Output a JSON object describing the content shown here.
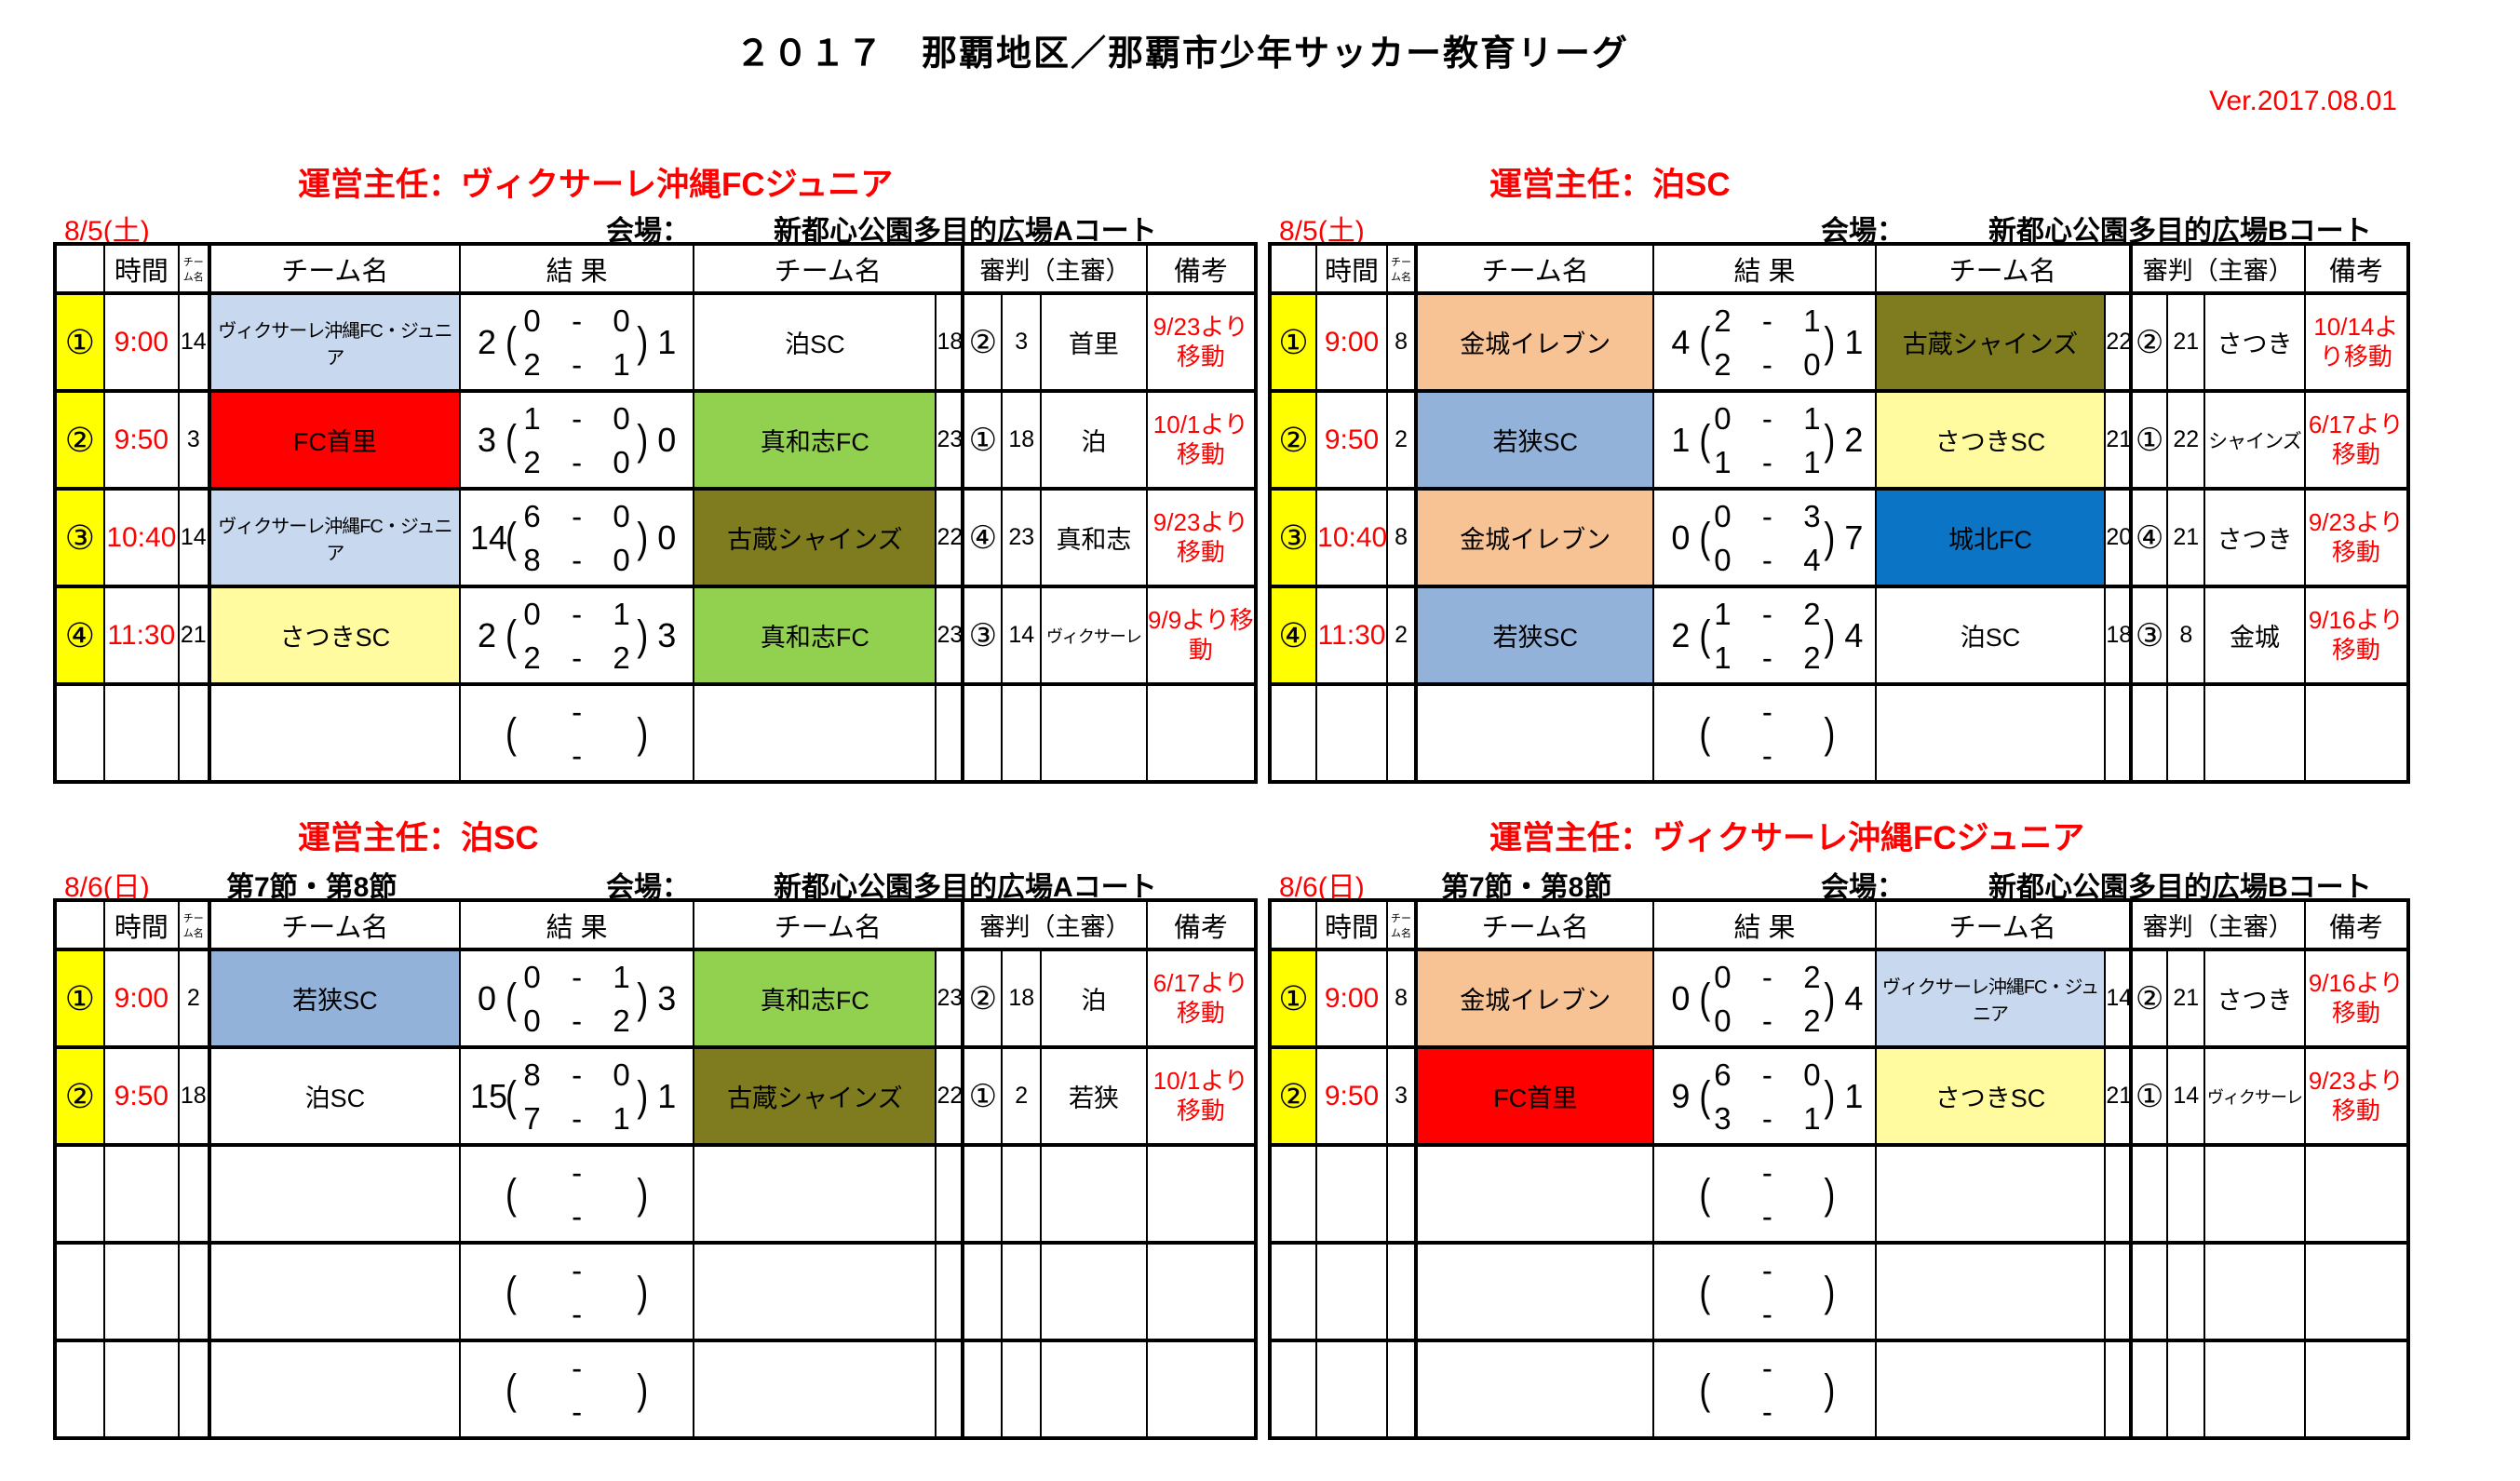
{
  "title": "２０１７　那覇地区／那覇市少年サッカー教育リーグ",
  "version": "Ver.2017.08.01",
  "venue_label": "会場：",
  "table_headers": {
    "corner": "",
    "time": "時間",
    "team_no_small": "チーム名",
    "home_team": "チーム名",
    "result": "結  果",
    "away_team": "チーム名",
    "referee": "審判（主審）",
    "note": "備考"
  },
  "colors": {
    "accent_red": "#FF0000",
    "row_marker_yellow": "#FFFF00",
    "team_vikusare_lightblue": "#C8D8EF",
    "team_shuri_red": "#FF0000",
    "team_mawashi_green": "#92D050",
    "team_kokura_olive": "#7E7C1E",
    "team_satsuki_yellow": "#FFFB9E",
    "team_kinjo_orange": "#F8C394",
    "team_wakasa_blue": "#93B2DA",
    "team_johoku_blue": "#0B74C4",
    "team_white": "#FFFFFF"
  },
  "sections": [
    {
      "manager": "運営主任：ヴィクサーレ沖縄FCジュニア",
      "date": "8/5(土)",
      "round": "",
      "venue": "新都心公園多目的広場Aコート",
      "empty_rows": 1,
      "matches": [
        {
          "no": "①",
          "time": "9:00",
          "home_no": "14",
          "home": "ヴィクサーレ沖縄FC・ジュニア",
          "home_color": "#C8D8EF",
          "score": [
            "2",
            "1"
          ],
          "half1": [
            "0",
            "0"
          ],
          "half2": [
            "2",
            "1"
          ],
          "away": "泊SC",
          "away_color": "#FFFFFF",
          "away_no": "18",
          "ref_no": "②",
          "ref_team_no": "3",
          "referee": "首里",
          "note": "9/23より移動"
        },
        {
          "no": "②",
          "time": "9:50",
          "home_no": "3",
          "home": "FC首里",
          "home_color": "#FF0000",
          "score": [
            "3",
            "0"
          ],
          "half1": [
            "1",
            "0"
          ],
          "half2": [
            "2",
            "0"
          ],
          "away": "真和志FC",
          "away_color": "#92D050",
          "away_no": "23",
          "ref_no": "①",
          "ref_team_no": "18",
          "referee": "泊",
          "note": "10/1より移動"
        },
        {
          "no": "③",
          "time": "10:40",
          "home_no": "14",
          "home": "ヴィクサーレ沖縄FC・ジュニア",
          "home_color": "#C8D8EF",
          "score": [
            "14",
            "0"
          ],
          "half1": [
            "6",
            "0"
          ],
          "half2": [
            "8",
            "0"
          ],
          "away": "古蔵シャインズ",
          "away_color": "#7E7C1E",
          "away_no": "22",
          "ref_no": "④",
          "ref_team_no": "23",
          "referee": "真和志",
          "note": "9/23より移動"
        },
        {
          "no": "④",
          "time": "11:30",
          "home_no": "21",
          "home": "さつきSC",
          "home_color": "#FFFB9E",
          "score": [
            "2",
            "3"
          ],
          "half1": [
            "0",
            "1"
          ],
          "half2": [
            "2",
            "2"
          ],
          "away": "真和志FC",
          "away_color": "#92D050",
          "away_no": "23",
          "ref_no": "③",
          "ref_team_no": "14",
          "referee": "ヴィクサーレ",
          "note": "9/9より移動"
        }
      ]
    },
    {
      "manager": "運営主任：泊SC",
      "date": "8/5(土)",
      "round": "",
      "venue": "新都心公園多目的広場Bコート",
      "empty_rows": 1,
      "matches": [
        {
          "no": "①",
          "time": "9:00",
          "home_no": "8",
          "home": "金城イレブン",
          "home_color": "#F8C394",
          "score": [
            "4",
            "1"
          ],
          "half1": [
            "2",
            "1"
          ],
          "half2": [
            "2",
            "0"
          ],
          "away": "古蔵シャインズ",
          "away_color": "#7E7C1E",
          "away_no": "22",
          "ref_no": "②",
          "ref_team_no": "21",
          "referee": "さつき",
          "note": "10/14より移動"
        },
        {
          "no": "②",
          "time": "9:50",
          "home_no": "2",
          "home": "若狭SC",
          "home_color": "#93B2DA",
          "score": [
            "1",
            "2"
          ],
          "half1": [
            "0",
            "1"
          ],
          "half2": [
            "1",
            "1"
          ],
          "away": "さつきSC",
          "away_color": "#FFFB9E",
          "away_no": "21",
          "ref_no": "①",
          "ref_team_no": "22",
          "referee": "シャインズ",
          "note": "6/17より移動"
        },
        {
          "no": "③",
          "time": "10:40",
          "home_no": "8",
          "home": "金城イレブン",
          "home_color": "#F8C394",
          "score": [
            "0",
            "7"
          ],
          "half1": [
            "0",
            "3"
          ],
          "half2": [
            "0",
            "4"
          ],
          "away": "城北FC",
          "away_color": "#0B74C4",
          "away_no": "20",
          "ref_no": "④",
          "ref_team_no": "21",
          "referee": "さつき",
          "note": "9/23より移動"
        },
        {
          "no": "④",
          "time": "11:30",
          "home_no": "2",
          "home": "若狭SC",
          "home_color": "#93B2DA",
          "score": [
            "2",
            "4"
          ],
          "half1": [
            "1",
            "2"
          ],
          "half2": [
            "1",
            "2"
          ],
          "away": "泊SC",
          "away_color": "#FFFFFF",
          "away_no": "18",
          "ref_no": "③",
          "ref_team_no": "8",
          "referee": "金城",
          "note": "9/16より移動"
        }
      ]
    },
    {
      "manager": "運営主任：泊SC",
      "date": "8/6(日)",
      "round": "第7節・第8節",
      "venue": "新都心公園多目的広場Aコート",
      "empty_rows": 3,
      "matches": [
        {
          "no": "①",
          "time": "9:00",
          "home_no": "2",
          "home": "若狭SC",
          "home_color": "#93B2DA",
          "score": [
            "0",
            "3"
          ],
          "half1": [
            "0",
            "1"
          ],
          "half2": [
            "0",
            "2"
          ],
          "away": "真和志FC",
          "away_color": "#92D050",
          "away_no": "23",
          "ref_no": "②",
          "ref_team_no": "18",
          "referee": "泊",
          "note": "6/17より移動"
        },
        {
          "no": "②",
          "time": "9:50",
          "home_no": "18",
          "home": "泊SC",
          "home_color": "#FFFFFF",
          "score": [
            "15",
            "1"
          ],
          "half1": [
            "8",
            "0"
          ],
          "half2": [
            "7",
            "1"
          ],
          "away": "古蔵シャインズ",
          "away_color": "#7E7C1E",
          "away_no": "22",
          "ref_no": "①",
          "ref_team_no": "2",
          "referee": "若狭",
          "note": "10/1より移動"
        }
      ]
    },
    {
      "manager": "運営主任：ヴィクサーレ沖縄FCジュニア",
      "date": "8/6(日)",
      "round": "第7節・第8節",
      "venue": "新都心公園多目的広場Bコート",
      "empty_rows": 3,
      "matches": [
        {
          "no": "①",
          "time": "9:00",
          "home_no": "8",
          "home": "金城イレブン",
          "home_color": "#F8C394",
          "score": [
            "0",
            "4"
          ],
          "half1": [
            "0",
            "2"
          ],
          "half2": [
            "0",
            "2"
          ],
          "away": "ヴィクサーレ沖縄FC・ジュニア",
          "away_color": "#C8D8EF",
          "away_no": "14",
          "ref_no": "②",
          "ref_team_no": "21",
          "referee": "さつき",
          "note": "9/16より移動"
        },
        {
          "no": "②",
          "time": "9:50",
          "home_no": "3",
          "home": "FC首里",
          "home_color": "#FF0000",
          "score": [
            "9",
            "1"
          ],
          "half1": [
            "6",
            "0"
          ],
          "half2": [
            "3",
            "1"
          ],
          "away": "さつきSC",
          "away_color": "#FFFB9E",
          "away_no": "21",
          "ref_no": "①",
          "ref_team_no": "14",
          "referee": "ヴィクサーレ",
          "note": "9/23より移動"
        }
      ]
    }
  ],
  "layout_note": ""
}
